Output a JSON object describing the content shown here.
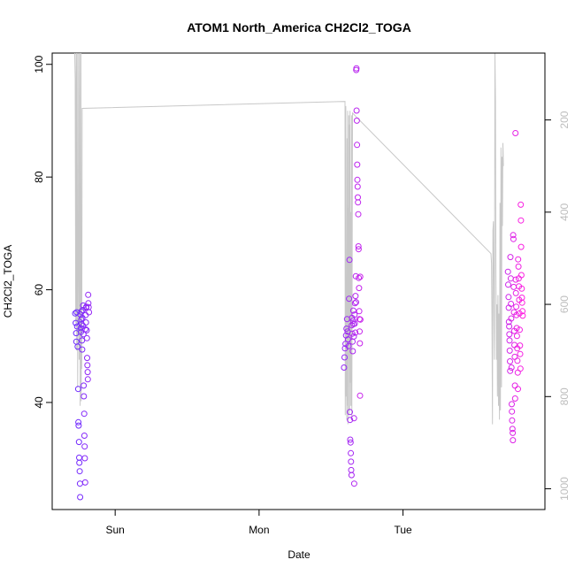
{
  "chart_data": {
    "type": "scatter",
    "title": "ATOM1 North_America CH2Cl2_TOGA",
    "xlabel": "Date",
    "ylabel": "CH2Cl2_TOGA",
    "x_axis": {
      "kind": "date",
      "ticks": [
        {
          "label": "Sun",
          "value": "2016-08-07T00:00"
        },
        {
          "label": "Mon",
          "value": "2016-08-08T00:00"
        },
        {
          "label": "Tue",
          "value": "2016-08-09T00:00"
        }
      ],
      "range": [
        "2016-08-06T13:30",
        "2016-08-09T23:40"
      ]
    },
    "y_axis": {
      "range": [
        21,
        102
      ],
      "ticks": [
        40,
        60,
        80,
        100
      ]
    },
    "y2_axis": {
      "label": "",
      "reversed": true,
      "range": [
        1045,
        55
      ],
      "ticks": [
        200,
        400,
        600,
        800,
        1000
      ],
      "color": "#bdbdbd"
    },
    "grid": false,
    "colors": {
      "start": "#6a2bff",
      "end": "#ff20e0",
      "altitude_line": "#c8c8c8"
    },
    "series": [
      {
        "values": [
          [
            "2016-08-06T17:20",
            55.8
          ],
          [
            "2016-08-06T17:25",
            54.1
          ],
          [
            "2016-08-06T17:30",
            52.3
          ],
          [
            "2016-08-06T17:32",
            50.8
          ],
          [
            "2016-08-06T17:35",
            56.0
          ],
          [
            "2016-08-06T17:40",
            53.5
          ],
          [
            "2016-08-06T17:45",
            49.9
          ],
          [
            "2016-08-06T17:50",
            42.4
          ],
          [
            "2016-08-06T17:52",
            36.5
          ],
          [
            "2016-08-06T17:55",
            35.9
          ],
          [
            "2016-08-06T17:58",
            33.0
          ],
          [
            "2016-08-06T18:00",
            30.2
          ],
          [
            "2016-08-06T18:02",
            29.3
          ],
          [
            "2016-08-06T18:05",
            27.8
          ],
          [
            "2016-08-06T18:08",
            25.6
          ],
          [
            "2016-08-06T18:10",
            23.2
          ],
          [
            "2016-08-06T18:12",
            55.6
          ],
          [
            "2016-08-06T18:15",
            53.2
          ],
          [
            "2016-08-06T18:18",
            52.5
          ],
          [
            "2016-08-06T18:20",
            54.7
          ],
          [
            "2016-08-06T18:22",
            56.1
          ],
          [
            "2016-08-06T18:25",
            53.9
          ],
          [
            "2016-08-06T18:28",
            51.0
          ],
          [
            "2016-08-06T18:30",
            49.4
          ],
          [
            "2016-08-06T18:32",
            55.0
          ],
          [
            "2016-08-06T18:35",
            56.4
          ],
          [
            "2016-08-06T18:38",
            53.6
          ],
          [
            "2016-08-06T18:40",
            57.2
          ],
          [
            "2016-08-06T18:42",
            52.1
          ],
          [
            "2016-08-06T18:45",
            43.0
          ],
          [
            "2016-08-06T18:47",
            41.1
          ],
          [
            "2016-08-06T18:50",
            38.0
          ],
          [
            "2016-08-06T18:52",
            34.1
          ],
          [
            "2016-08-06T18:55",
            32.2
          ],
          [
            "2016-08-06T18:57",
            30.1
          ],
          [
            "2016-08-06T19:00",
            25.8
          ],
          [
            "2016-08-06T19:02",
            53.0
          ],
          [
            "2016-08-06T19:05",
            55.5
          ],
          [
            "2016-08-06T19:08",
            54.2
          ],
          [
            "2016-08-06T19:10",
            56.8
          ],
          [
            "2016-08-06T19:12",
            57.0
          ],
          [
            "2016-08-06T19:15",
            52.8
          ],
          [
            "2016-08-06T19:18",
            51.4
          ],
          [
            "2016-08-06T19:20",
            47.9
          ],
          [
            "2016-08-06T19:22",
            46.6
          ],
          [
            "2016-08-06T19:25",
            45.4
          ],
          [
            "2016-08-06T19:27",
            44.1
          ],
          [
            "2016-08-06T19:30",
            59.1
          ],
          [
            "2016-08-06T19:32",
            57.6
          ],
          [
            "2016-08-06T19:35",
            56.9
          ],
          [
            "2016-08-06T19:38",
            56.0
          ],
          [
            "2016-08-08T14:10",
            46.2
          ],
          [
            "2016-08-08T14:15",
            48.0
          ],
          [
            "2016-08-08T14:20",
            49.6
          ],
          [
            "2016-08-08T14:25",
            50.4
          ],
          [
            "2016-08-08T14:30",
            51.9
          ],
          [
            "2016-08-08T14:35",
            53.1
          ],
          [
            "2016-08-08T14:40",
            54.8
          ],
          [
            "2016-08-08T14:45",
            52.6
          ],
          [
            "2016-08-08T14:50",
            51.2
          ],
          [
            "2016-08-08T14:55",
            50.0
          ],
          [
            "2016-08-08T15:00",
            58.4
          ],
          [
            "2016-08-08T15:05",
            65.3
          ],
          [
            "2016-08-08T15:08",
            38.3
          ],
          [
            "2016-08-08T15:10",
            36.9
          ],
          [
            "2016-08-08T15:12",
            33.4
          ],
          [
            "2016-08-08T15:15",
            32.9
          ],
          [
            "2016-08-08T15:18",
            31.0
          ],
          [
            "2016-08-08T15:20",
            29.5
          ],
          [
            "2016-08-08T15:22",
            28.0
          ],
          [
            "2016-08-08T15:25",
            27.1
          ],
          [
            "2016-08-08T15:28",
            53.7
          ],
          [
            "2016-08-08T15:30",
            55.0
          ],
          [
            "2016-08-08T15:33",
            52.2
          ],
          [
            "2016-08-08T15:35",
            50.8
          ],
          [
            "2016-08-08T15:38",
            49.1
          ],
          [
            "2016-08-08T15:40",
            54.5
          ],
          [
            "2016-08-08T15:43",
            56.3
          ],
          [
            "2016-08-08T15:45",
            53.9
          ],
          [
            "2016-08-08T15:48",
            51.7
          ],
          [
            "2016-08-08T15:50",
            37.2
          ],
          [
            "2016-08-08T15:52",
            25.6
          ],
          [
            "2016-08-08T15:55",
            55.6
          ],
          [
            "2016-08-08T15:58",
            54.0
          ],
          [
            "2016-08-08T16:00",
            57.6
          ],
          [
            "2016-08-08T16:03",
            52.4
          ],
          [
            "2016-08-08T16:05",
            58.9
          ],
          [
            "2016-08-08T16:08",
            62.4
          ],
          [
            "2016-08-08T16:10",
            57.8
          ],
          [
            "2016-08-08T16:12",
            99.0
          ],
          [
            "2016-08-08T16:14",
            99.3
          ],
          [
            "2016-08-08T16:16",
            91.8
          ],
          [
            "2016-08-08T16:18",
            90.0
          ],
          [
            "2016-08-08T16:20",
            85.7
          ],
          [
            "2016-08-08T16:22",
            82.2
          ],
          [
            "2016-08-08T16:24",
            79.5
          ],
          [
            "2016-08-08T16:26",
            78.3
          ],
          [
            "2016-08-08T16:28",
            76.4
          ],
          [
            "2016-08-08T16:30",
            75.5
          ],
          [
            "2016-08-08T16:32",
            73.4
          ],
          [
            "2016-08-08T16:34",
            67.7
          ],
          [
            "2016-08-08T16:36",
            67.2
          ],
          [
            "2016-08-08T16:38",
            62.1
          ],
          [
            "2016-08-08T16:40",
            60.3
          ],
          [
            "2016-08-08T16:42",
            56.2
          ],
          [
            "2016-08-08T16:44",
            54.8
          ],
          [
            "2016-08-08T16:46",
            52.6
          ],
          [
            "2016-08-08T16:48",
            50.5
          ],
          [
            "2016-08-08T16:50",
            41.2
          ],
          [
            "2016-08-08T16:52",
            62.3
          ],
          [
            "2016-08-08T16:54",
            54.7
          ],
          [
            "2016-08-09T17:30",
            63.2
          ],
          [
            "2016-08-09T17:33",
            60.9
          ],
          [
            "2016-08-09T17:36",
            58.7
          ],
          [
            "2016-08-09T17:38",
            56.8
          ],
          [
            "2016-08-09T17:40",
            54.3
          ],
          [
            "2016-08-09T17:42",
            53.5
          ],
          [
            "2016-08-09T17:44",
            52.1
          ],
          [
            "2016-08-09T17:46",
            51.0
          ],
          [
            "2016-08-09T17:48",
            49.2
          ],
          [
            "2016-08-09T17:50",
            47.3
          ],
          [
            "2016-08-09T17:52",
            45.6
          ],
          [
            "2016-08-09T17:55",
            65.8
          ],
          [
            "2016-08-09T17:58",
            62.0
          ],
          [
            "2016-08-09T18:00",
            57.5
          ],
          [
            "2016-08-09T18:03",
            54.9
          ],
          [
            "2016-08-09T18:05",
            46.2
          ],
          [
            "2016-08-09T18:08",
            39.7
          ],
          [
            "2016-08-09T18:10",
            38.4
          ],
          [
            "2016-08-09T18:12",
            36.8
          ],
          [
            "2016-08-09T18:15",
            35.3
          ],
          [
            "2016-08-09T18:18",
            34.6
          ],
          [
            "2016-08-09T18:20",
            33.3
          ],
          [
            "2016-08-09T18:22",
            69.7
          ],
          [
            "2016-08-09T18:25",
            69.0
          ],
          [
            "2016-08-09T18:28",
            60.5
          ],
          [
            "2016-08-09T18:30",
            56.0
          ],
          [
            "2016-08-09T18:33",
            52.7
          ],
          [
            "2016-08-09T18:35",
            50.2
          ],
          [
            "2016-08-09T18:38",
            48.1
          ],
          [
            "2016-08-09T18:40",
            43.0
          ],
          [
            "2016-08-09T18:42",
            40.7
          ],
          [
            "2016-08-09T18:45",
            87.8
          ],
          [
            "2016-08-09T18:48",
            61.8
          ],
          [
            "2016-08-09T18:50",
            59.4
          ],
          [
            "2016-08-09T18:53",
            57.0
          ],
          [
            "2016-08-09T18:55",
            55.5
          ],
          [
            "2016-08-09T18:58",
            53.2
          ],
          [
            "2016-08-09T19:00",
            51.8
          ],
          [
            "2016-08-09T19:03",
            49.6
          ],
          [
            "2016-08-09T19:05",
            47.4
          ],
          [
            "2016-08-09T19:08",
            45.3
          ],
          [
            "2016-08-09T19:10",
            42.4
          ],
          [
            "2016-08-09T19:12",
            65.4
          ],
          [
            "2016-08-09T19:15",
            64.1
          ],
          [
            "2016-08-09T19:18",
            62.0
          ],
          [
            "2016-08-09T19:20",
            60.6
          ],
          [
            "2016-08-09T19:22",
            58.2
          ],
          [
            "2016-08-09T19:25",
            55.8
          ],
          [
            "2016-08-09T19:28",
            52.9
          ],
          [
            "2016-08-09T19:30",
            50.1
          ],
          [
            "2016-08-09T19:32",
            48.6
          ],
          [
            "2016-08-09T19:35",
            46.0
          ],
          [
            "2016-08-09T19:38",
            75.1
          ],
          [
            "2016-08-09T19:40",
            72.3
          ],
          [
            "2016-08-09T19:42",
            67.6
          ],
          [
            "2016-08-09T19:45",
            62.6
          ],
          [
            "2016-08-09T19:48",
            60.2
          ],
          [
            "2016-08-09T19:50",
            58.6
          ],
          [
            "2016-08-09T19:52",
            57.7
          ],
          [
            "2016-08-09T19:55",
            56.2
          ],
          [
            "2016-08-09T19:58",
            55.4
          ]
        ]
      }
    ],
    "altitude_line": [
      [
        "2016-08-06T17:15",
        48
      ],
      [
        "2016-08-06T17:20",
        110
      ],
      [
        "2016-08-06T17:25",
        640
      ],
      [
        "2016-08-06T17:30",
        48
      ],
      [
        "2016-08-06T17:35",
        700
      ],
      [
        "2016-08-06T17:40",
        40
      ],
      [
        "2016-08-06T17:45",
        780
      ],
      [
        "2016-08-06T17:50",
        520
      ],
      [
        "2016-08-06T17:55",
        48
      ],
      [
        "2016-08-06T18:00",
        720
      ],
      [
        "2016-08-06T18:05",
        48
      ],
      [
        "2016-08-06T18:08",
        400
      ],
      [
        "2016-08-06T18:10",
        820
      ],
      [
        "2016-08-06T18:13",
        600
      ],
      [
        "2016-08-06T18:15",
        700
      ],
      [
        "2016-08-06T18:18",
        48
      ],
      [
        "2016-08-06T18:20",
        810
      ],
      [
        "2016-08-06T18:23",
        560
      ],
      [
        "2016-08-06T18:26",
        740
      ],
      [
        "2016-08-06T18:30",
        175
      ],
      [
        "2016-08-08T14:20",
        160
      ],
      [
        "2016-08-08T14:22",
        840
      ],
      [
        "2016-08-08T14:25",
        600
      ],
      [
        "2016-08-08T14:28",
        170
      ],
      [
        "2016-08-08T14:31",
        800
      ],
      [
        "2016-08-08T14:34",
        650
      ],
      [
        "2016-08-08T14:37",
        850
      ],
      [
        "2016-08-08T14:40",
        240
      ],
      [
        "2016-08-08T14:43",
        820
      ],
      [
        "2016-08-08T14:46",
        180
      ],
      [
        "2016-08-08T14:49",
        860
      ],
      [
        "2016-08-08T14:52",
        390
      ],
      [
        "2016-08-08T14:55",
        720
      ],
      [
        "2016-08-08T14:58",
        190
      ],
      [
        "2016-08-08T15:01",
        840
      ],
      [
        "2016-08-08T15:04",
        210
      ],
      [
        "2016-08-08T15:07",
        830
      ],
      [
        "2016-08-08T15:10",
        180
      ],
      [
        "2016-08-08T15:13",
        770
      ],
      [
        "2016-08-08T15:16",
        400
      ],
      [
        "2016-08-08T15:19",
        820
      ],
      [
        "2016-08-08T15:22",
        660
      ],
      [
        "2016-08-08T15:25",
        190
      ],
      [
        "2016-08-08T15:28",
        850
      ],
      [
        "2016-08-08T15:35",
        185
      ],
      [
        "2016-08-09T14:40",
        490
      ],
      [
        "2016-08-09T14:45",
        510
      ],
      [
        "2016-08-09T14:50",
        620
      ],
      [
        "2016-08-09T14:55",
        860
      ],
      [
        "2016-08-09T15:00",
        440
      ],
      [
        "2016-08-09T15:05",
        420
      ],
      [
        "2016-08-09T15:10",
        640
      ],
      [
        "2016-08-09T15:15",
        720
      ],
      [
        "2016-08-09T15:20",
        56
      ],
      [
        "2016-08-09T15:25",
        160
      ],
      [
        "2016-08-09T15:30",
        520
      ],
      [
        "2016-08-09T15:35",
        720
      ],
      [
        "2016-08-09T15:40",
        600
      ],
      [
        "2016-08-09T15:45",
        800
      ],
      [
        "2016-08-09T15:50",
        580
      ],
      [
        "2016-08-09T15:55",
        820
      ],
      [
        "2016-08-09T16:00",
        620
      ],
      [
        "2016-08-09T16:05",
        850
      ],
      [
        "2016-08-09T16:10",
        380
      ],
      [
        "2016-08-09T16:15",
        830
      ],
      [
        "2016-08-09T16:20",
        260
      ],
      [
        "2016-08-09T16:25",
        780
      ],
      [
        "2016-08-09T16:30",
        280
      ],
      [
        "2016-08-09T16:35",
        430
      ],
      [
        "2016-08-09T16:40",
        250
      ],
      [
        "2016-08-09T16:45",
        300
      ]
    ]
  }
}
